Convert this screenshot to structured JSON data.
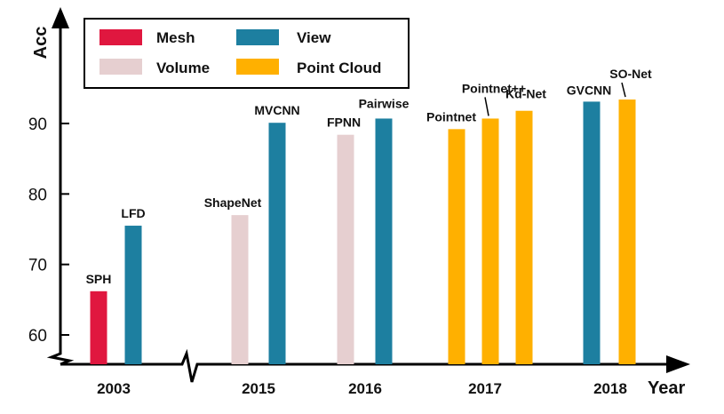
{
  "chart_data": {
    "type": "bar",
    "ylabel": "Acc",
    "xlabel": "Year",
    "ylim": [
      56,
      100
    ],
    "yticks": [
      60,
      70,
      80,
      90
    ],
    "years": [
      "2003",
      "2015",
      "2016",
      "2017",
      "2018"
    ],
    "legend": {
      "position": "top-left",
      "entries": [
        {
          "name": "Mesh",
          "color": "#e0173f"
        },
        {
          "name": "View",
          "color": "#1d7fa0"
        },
        {
          "name": "Volume",
          "color": "#e6cfd0"
        },
        {
          "name": "Point Cloud",
          "color": "#ffb000"
        }
      ]
    },
    "bars": [
      {
        "label": "SPH",
        "year": "2003",
        "category": "Mesh",
        "value": 66.2
      },
      {
        "label": "LFD",
        "year": "2003",
        "category": "View",
        "value": 75.5
      },
      {
        "label": "ShapeNet",
        "year": "2015",
        "category": "Volume",
        "value": 77.0
      },
      {
        "label": "MVCNN",
        "year": "2015",
        "category": "View",
        "value": 90.1
      },
      {
        "label": "FPNN",
        "year": "2016",
        "category": "Volume",
        "value": 88.4
      },
      {
        "label": "Pairwise",
        "year": "2016",
        "category": "View",
        "value": 90.7
      },
      {
        "label": "Pointnet",
        "year": "2017",
        "category": "Point Cloud",
        "value": 89.2
      },
      {
        "label": "Pointnet++",
        "year": "2017",
        "category": "Point Cloud",
        "value": 90.7
      },
      {
        "label": "Kd-Net",
        "year": "2017",
        "category": "Point Cloud",
        "value": 91.8
      },
      {
        "label": "GVCNN",
        "year": "2018",
        "category": "View",
        "value": 93.1
      },
      {
        "label": "SO-Net",
        "year": "2018",
        "category": "Point Cloud",
        "value": 93.4
      }
    ]
  }
}
